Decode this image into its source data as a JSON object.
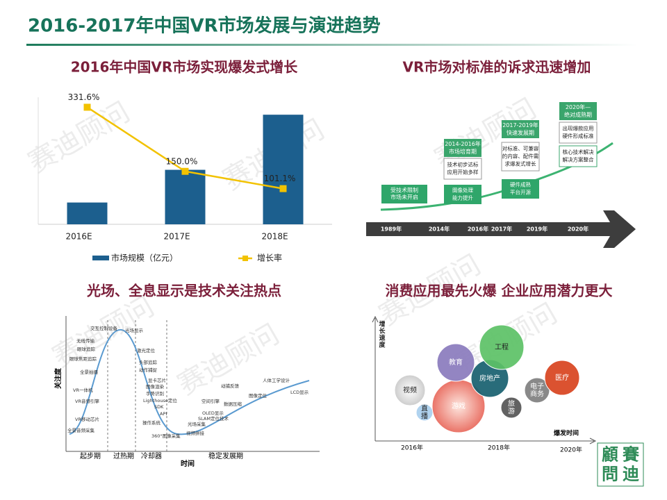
{
  "header": {
    "title": "2016-2017年中国VR市场发展与演进趋势"
  },
  "chart_data": {
    "type": "bar",
    "title": "2016年中国VR市场实现爆发式增长",
    "categories": [
      "2016E",
      "2017E",
      "2018E"
    ],
    "series": [
      {
        "name": "市场规模（亿元）",
        "color": "#1c5f8e",
        "values": [
          56.6,
          141.5,
          284.6
        ]
      },
      {
        "name": "增长率",
        "type": "line",
        "axis": "y2",
        "color": "#f2c200",
        "values": [
          331.6,
          150.0,
          101.1
        ],
        "value_labels": [
          "331.6%",
          "150.0%",
          "101.1%"
        ]
      }
    ],
    "ylim": [
      0,
      330
    ],
    "y2lim": [
      0,
      360
    ],
    "grid": false,
    "legend": "bottom"
  },
  "roadmap": {
    "title": "VR市场对标准的诉求迅速增加",
    "years": [
      "1989年",
      "2014年",
      "2016年",
      "2017年",
      "2019年",
      "2020年"
    ],
    "start_box": [
      "受技术限制",
      "市场未开启"
    ],
    "stages": [
      {
        "period": [
          "2014-2016年",
          "市场培育期"
        ],
        "need": [
          "技术初步达标",
          "应用开始多样"
        ],
        "driver": [
          "图像处理",
          "能力提升"
        ]
      },
      {
        "period": [
          "2017-2019年",
          "快速发展期"
        ],
        "need": [
          "对标准、可兼容",
          "的内容、配件需",
          "求爆发式增长"
        ],
        "driver": [
          "硬件成熟",
          "平台开源"
        ]
      },
      {
        "period": [
          "2020年—",
          "绝对成熟期"
        ],
        "need": [
          "出现爆款应用",
          "硬件形成标准"
        ],
        "driver": [
          "核心技术解决",
          "解决方案整合"
        ]
      }
    ]
  },
  "hype_cycle": {
    "title": "光场、全息显示是技术关注热点",
    "y_label": "关注度",
    "x_label": "时间",
    "phases": [
      "起步期",
      "过热期",
      "冷却器",
      "稳定发展期"
    ],
    "technologies": [
      "交互控制设备",
      "光场显示",
      "无线传输",
      "眼球追踪",
      "眼球焦距追踪",
      "激光定位",
      "头部追踪",
      "动作捕捉",
      "全景拍摄",
      "VR一体机",
      "显卡芯片",
      "图像渲染",
      "VR音频引擎",
      "手势识别",
      "Lighthouse定位",
      "SDK",
      "API",
      "VR移动芯片",
      "操作系统",
      "全景音频采集",
      "360°图像采集",
      "视频拼接",
      "光场采集",
      "SLAM定位技术",
      "OLED显示",
      "空间引擎",
      "数据压缩",
      "动捕反馈",
      "图像定位",
      "人体工学设计",
      "LCD显示"
    ]
  },
  "bubble_map": {
    "title": "消费应用最先火爆 企业应用潜力更大",
    "y_label": [
      "增",
      "长",
      "速",
      "度"
    ],
    "x_label": "爆发时间",
    "years": [
      "2016年",
      "2018年",
      "2020年"
    ],
    "applications": [
      [
        "视频"
      ],
      [
        "直",
        "播"
      ],
      [
        "游戏"
      ],
      [
        "教育"
      ],
      [
        "房地产"
      ],
      [
        "工程"
      ],
      [
        "旅",
        "游"
      ],
      [
        "电子",
        "商务"
      ],
      [
        "医疗"
      ]
    ]
  },
  "watermark": "赛迪顾问",
  "logo": [
    "賽",
    "迪",
    "顧",
    "問"
  ]
}
